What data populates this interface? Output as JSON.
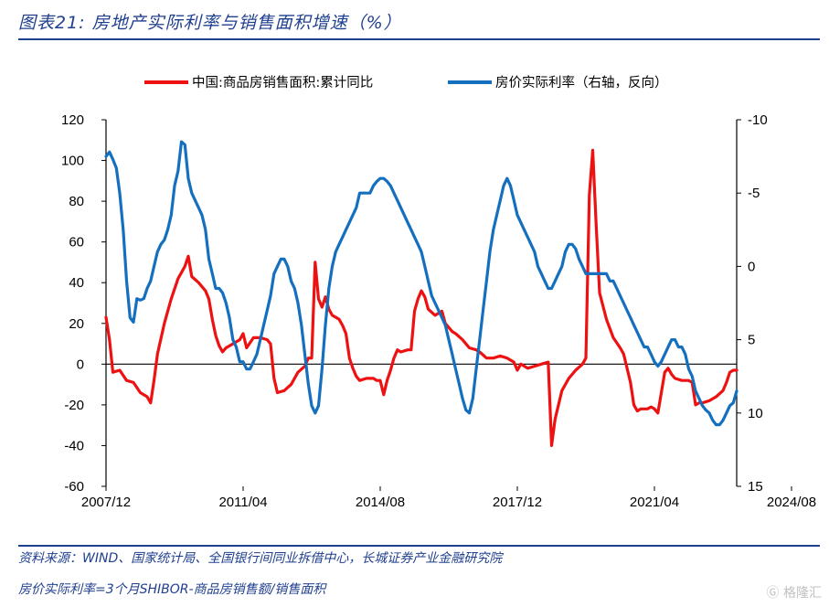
{
  "header": {
    "title": "图表21:  房地产实际利率与销售面积增速（%）"
  },
  "footer": {
    "source": "资料来源：WIND、国家统计局、全国银行间同业拆借中心，长城证券产业金融研究院",
    "note": "房价实际利率=3个月SHIBOR-商品房销售额/销售面积",
    "watermark": "格隆汇"
  },
  "colors": {
    "sales_area": "#ee1111",
    "real_rate": "#1470bf",
    "axis": "#000000"
  },
  "chart_data": {
    "type": "line",
    "title": "房地产实际利率与销售面积增速（%）",
    "legend_position": "top",
    "x_tick_labels": [
      "2007/12",
      "2011/04",
      "2014/08",
      "2017/12",
      "2021/04",
      "2024/08"
    ],
    "x_tick_index": [
      0,
      40,
      80,
      120,
      160,
      200
    ],
    "left_axis": {
      "ylim": [
        -60,
        120
      ],
      "ticks": [
        "120",
        "100",
        "80",
        "60",
        "40",
        "20",
        "0",
        "-20",
        "-40",
        "-60"
      ]
    },
    "right_axis": {
      "ylim": [
        -10,
        15
      ],
      "reversed": true,
      "ticks": [
        "-10",
        "-5",
        "0",
        "5",
        "10",
        "15"
      ]
    },
    "series": [
      {
        "name": "中国:商品房销售面积:累计同比",
        "axis": "left",
        "points": [
          [
            0,
            23
          ],
          [
            1,
            12
          ],
          [
            2,
            -4
          ],
          [
            4,
            -3
          ],
          [
            6,
            -8
          ],
          [
            8,
            -9
          ],
          [
            10,
            -14
          ],
          [
            12,
            -16
          ],
          [
            13,
            -19
          ],
          [
            14,
            -8
          ],
          [
            15,
            5
          ],
          [
            17,
            20
          ],
          [
            19,
            32
          ],
          [
            21,
            42
          ],
          [
            23,
            48
          ],
          [
            24,
            53
          ],
          [
            25,
            43
          ],
          [
            27,
            40
          ],
          [
            29,
            36
          ],
          [
            30,
            32
          ],
          [
            31,
            22
          ],
          [
            32,
            14
          ],
          [
            33,
            9
          ],
          [
            34,
            6
          ],
          [
            35,
            8
          ],
          [
            37,
            10
          ],
          [
            39,
            12
          ],
          [
            40,
            15
          ],
          [
            41,
            8
          ],
          [
            43,
            13
          ],
          [
            45,
            13
          ],
          [
            47,
            12
          ],
          [
            48,
            10
          ],
          [
            49,
            -7
          ],
          [
            50,
            -14
          ],
          [
            52,
            -13
          ],
          [
            54,
            -10
          ],
          [
            56,
            -4
          ],
          [
            58,
            -1
          ],
          [
            59,
            3
          ],
          [
            60,
            3
          ],
          [
            61,
            50
          ],
          [
            62,
            32
          ],
          [
            63,
            28
          ],
          [
            64,
            33
          ],
          [
            65,
            27
          ],
          [
            66,
            24
          ],
          [
            68,
            22
          ],
          [
            69,
            19
          ],
          [
            70,
            15
          ],
          [
            71,
            3
          ],
          [
            72,
            -2
          ],
          [
            73,
            -6
          ],
          [
            74,
            -8
          ],
          [
            76,
            -7
          ],
          [
            78,
            -7
          ],
          [
            79,
            -8
          ],
          [
            80,
            -8
          ],
          [
            81,
            -15
          ],
          [
            82,
            -8
          ],
          [
            83,
            -3
          ],
          [
            84,
            3
          ],
          [
            85,
            7
          ],
          [
            86,
            6
          ],
          [
            88,
            7
          ],
          [
            89,
            7
          ],
          [
            90,
            26
          ],
          [
            91,
            32
          ],
          [
            92,
            36
          ],
          [
            93,
            33
          ],
          [
            94,
            27
          ],
          [
            96,
            24
          ],
          [
            97,
            25
          ],
          [
            98,
            26
          ],
          [
            99,
            20
          ],
          [
            101,
            16
          ],
          [
            102,
            15
          ],
          [
            104,
            12
          ],
          [
            106,
            8
          ],
          [
            108,
            7
          ],
          [
            109,
            6
          ],
          [
            111,
            3
          ],
          [
            113,
            3
          ],
          [
            115,
            4
          ],
          [
            117,
            3
          ],
          [
            119,
            1
          ],
          [
            120,
            -3
          ],
          [
            121,
            0
          ],
          [
            123,
            -2
          ],
          [
            125,
            -1
          ],
          [
            127,
            0
          ],
          [
            129,
            1
          ],
          [
            130,
            -40
          ],
          [
            131,
            -27
          ],
          [
            133,
            -13
          ],
          [
            135,
            -7
          ],
          [
            137,
            -3
          ],
          [
            139,
            0
          ],
          [
            140,
            3
          ],
          [
            141,
            83
          ],
          [
            142,
            105
          ],
          [
            143,
            68
          ],
          [
            144,
            35
          ],
          [
            146,
            22
          ],
          [
            148,
            13
          ],
          [
            150,
            8
          ],
          [
            151,
            5
          ],
          [
            153,
            -9
          ],
          [
            154,
            -20
          ],
          [
            155,
            -23
          ],
          [
            156,
            -22
          ],
          [
            158,
            -22
          ],
          [
            159,
            -21
          ],
          [
            160,
            -22
          ],
          [
            161,
            -24
          ],
          [
            163,
            -4
          ],
          [
            164,
            -2
          ],
          [
            165,
            -5
          ],
          [
            166,
            -7
          ],
          [
            168,
            -8
          ],
          [
            170,
            -8
          ],
          [
            171,
            -9
          ],
          [
            172,
            -20
          ],
          [
            173,
            -19
          ],
          [
            174,
            -19
          ],
          [
            176,
            -18
          ],
          [
            178,
            -16
          ],
          [
            180,
            -13
          ],
          [
            181,
            -9
          ],
          [
            182,
            -4
          ],
          [
            183,
            -3
          ],
          [
            184,
            -3
          ]
        ]
      },
      {
        "name": "房价实际利率（右轴，反向）",
        "axis": "right",
        "points": [
          [
            0,
            -7.5
          ],
          [
            1,
            -7.8
          ],
          [
            2,
            -7.3
          ],
          [
            3,
            -6.7
          ],
          [
            4,
            -5
          ],
          [
            5,
            -2.5
          ],
          [
            6,
            1
          ],
          [
            7,
            3.5
          ],
          [
            8,
            3.8
          ],
          [
            9,
            2.2
          ],
          [
            10,
            2.3
          ],
          [
            11,
            2.2
          ],
          [
            12,
            1.5
          ],
          [
            13,
            1
          ],
          [
            14,
            0
          ],
          [
            15,
            -1
          ],
          [
            16,
            -1.5
          ],
          [
            17,
            -1.8
          ],
          [
            18,
            -2.5
          ],
          [
            19,
            -3.5
          ],
          [
            20,
            -5.5
          ],
          [
            21,
            -6.5
          ],
          [
            22,
            -8.5
          ],
          [
            23,
            -8.3
          ],
          [
            24,
            -6
          ],
          [
            25,
            -5
          ],
          [
            26,
            -4.5
          ],
          [
            27,
            -4
          ],
          [
            28,
            -3.5
          ],
          [
            29,
            -2.5
          ],
          [
            30,
            -0.5
          ],
          [
            31,
            0.5
          ],
          [
            32,
            1.5
          ],
          [
            33,
            1.5
          ],
          [
            34,
            1.8
          ],
          [
            35,
            2.5
          ],
          [
            36,
            3.5
          ],
          [
            37,
            5
          ],
          [
            38,
            5.5
          ],
          [
            39,
            6.5
          ],
          [
            40,
            6.5
          ],
          [
            41,
            7
          ],
          [
            42,
            7
          ],
          [
            43,
            6.5
          ],
          [
            44,
            6
          ],
          [
            45,
            5
          ],
          [
            46,
            4
          ],
          [
            47,
            3
          ],
          [
            48,
            2
          ],
          [
            49,
            0.5
          ],
          [
            50,
            0
          ],
          [
            51,
            -0.5
          ],
          [
            52,
            -0.5
          ],
          [
            53,
            0
          ],
          [
            54,
            1
          ],
          [
            55,
            1.5
          ],
          [
            56,
            2.5
          ],
          [
            57,
            4
          ],
          [
            58,
            6
          ],
          [
            59,
            8
          ],
          [
            60,
            9.5
          ],
          [
            61,
            10
          ],
          [
            62,
            9.5
          ],
          [
            63,
            7
          ],
          [
            64,
            4
          ],
          [
            65,
            1.5
          ],
          [
            66,
            0
          ],
          [
            67,
            -1
          ],
          [
            68,
            -1.5
          ],
          [
            69,
            -2
          ],
          [
            70,
            -2.5
          ],
          [
            71,
            -3
          ],
          [
            72,
            -3.5
          ],
          [
            73,
            -4
          ],
          [
            74,
            -5
          ],
          [
            75,
            -5
          ],
          [
            76,
            -5
          ],
          [
            77,
            -5
          ],
          [
            78,
            -5.5
          ],
          [
            79,
            -5.8
          ],
          [
            80,
            -6
          ],
          [
            81,
            -6
          ],
          [
            82,
            -5.8
          ],
          [
            83,
            -5.5
          ],
          [
            84,
            -5
          ],
          [
            85,
            -4.5
          ],
          [
            86,
            -4
          ],
          [
            87,
            -3.5
          ],
          [
            88,
            -3
          ],
          [
            89,
            -2.5
          ],
          [
            90,
            -2
          ],
          [
            91,
            -1.5
          ],
          [
            92,
            -1
          ],
          [
            93,
            0
          ],
          [
            94,
            1
          ],
          [
            95,
            2
          ],
          [
            96,
            2.5
          ],
          [
            97,
            3
          ],
          [
            98,
            3.5
          ],
          [
            99,
            4
          ],
          [
            100,
            5
          ],
          [
            101,
            6
          ],
          [
            102,
            7
          ],
          [
            103,
            8
          ],
          [
            104,
            9
          ],
          [
            105,
            9.8
          ],
          [
            106,
            10
          ],
          [
            107,
            9
          ],
          [
            108,
            7
          ],
          [
            109,
            5
          ],
          [
            110,
            3
          ],
          [
            111,
            1
          ],
          [
            112,
            -1
          ],
          [
            113,
            -2.5
          ],
          [
            114,
            -3.5
          ],
          [
            115,
            -4.5
          ],
          [
            116,
            -5.5
          ],
          [
            117,
            -6
          ],
          [
            118,
            -5.5
          ],
          [
            119,
            -4.5
          ],
          [
            120,
            -3.5
          ],
          [
            121,
            -3
          ],
          [
            122,
            -2.5
          ],
          [
            123,
            -2
          ],
          [
            124,
            -1.5
          ],
          [
            125,
            -1
          ],
          [
            126,
            0
          ],
          [
            127,
            0.5
          ],
          [
            128,
            1
          ],
          [
            129,
            1.5
          ],
          [
            130,
            1.5
          ],
          [
            131,
            1
          ],
          [
            132,
            0.5
          ],
          [
            133,
            0
          ],
          [
            134,
            -1
          ],
          [
            135,
            -1.5
          ],
          [
            136,
            -1.5
          ],
          [
            137,
            -1.2
          ],
          [
            138,
            -0.5
          ],
          [
            139,
            0
          ],
          [
            140,
            0.5
          ],
          [
            141,
            0.5
          ],
          [
            142,
            0.5
          ],
          [
            143,
            0.5
          ],
          [
            144,
            0.5
          ],
          [
            145,
            0.5
          ],
          [
            146,
            0.5
          ],
          [
            147,
            1
          ],
          [
            148,
            1
          ],
          [
            149,
            1.5
          ],
          [
            150,
            2
          ],
          [
            151,
            2.5
          ],
          [
            152,
            3
          ],
          [
            153,
            3.5
          ],
          [
            154,
            4
          ],
          [
            155,
            4.5
          ],
          [
            156,
            5
          ],
          [
            157,
            5.5
          ],
          [
            158,
            5.5
          ],
          [
            159,
            6
          ],
          [
            160,
            6.5
          ],
          [
            161,
            6.8
          ],
          [
            162,
            6.5
          ],
          [
            163,
            6
          ],
          [
            164,
            5.5
          ],
          [
            165,
            5
          ],
          [
            166,
            5
          ],
          [
            167,
            5.5
          ],
          [
            168,
            5.5
          ],
          [
            169,
            6
          ],
          [
            170,
            7
          ],
          [
            171,
            7.5
          ],
          [
            172,
            8.5
          ],
          [
            173,
            9
          ],
          [
            174,
            9.5
          ],
          [
            175,
            9.8
          ],
          [
            176,
            10
          ],
          [
            177,
            10.5
          ],
          [
            178,
            10.8
          ],
          [
            179,
            10.8
          ],
          [
            180,
            10.5
          ],
          [
            181,
            10
          ],
          [
            182,
            9.5
          ],
          [
            183,
            9.3
          ],
          [
            184,
            8.5
          ]
        ]
      }
    ]
  }
}
